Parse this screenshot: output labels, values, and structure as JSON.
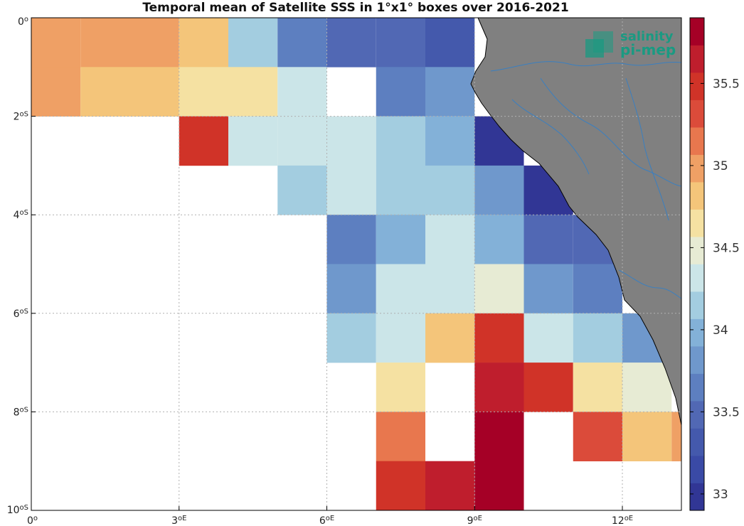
{
  "title": "Temporal mean of Satellite SSS in 1°x1° boxes over 2016-2021",
  "logo": {
    "line1": "salinity",
    "line2": "pi-mep",
    "icon": "pimep-logo-icon"
  },
  "colors": {
    "land": "#808080",
    "rivers": "#3a7fc0",
    "grid": "#b0b0b0",
    "frame": "#000000"
  },
  "map_data": {
    "type": "heatmap",
    "lon_range": [
      0,
      13.2
    ],
    "lat_range": [
      -10,
      0
    ],
    "x_ticks": [
      {
        "value": 0,
        "label": "0",
        "suffix": "o"
      },
      {
        "value": 3,
        "label": "3",
        "suffix": "oE"
      },
      {
        "value": 6,
        "label": "6",
        "suffix": "oE"
      },
      {
        "value": 9,
        "label": "9",
        "suffix": "oE"
      },
      {
        "value": 12,
        "label": "12",
        "suffix": "oE"
      }
    ],
    "y_ticks": [
      {
        "value": 0,
        "label": "0",
        "suffix": "o"
      },
      {
        "value": -2,
        "label": "2",
        "suffix": "oS"
      },
      {
        "value": -4,
        "label": "4",
        "suffix": "oS"
      },
      {
        "value": -6,
        "label": "6",
        "suffix": "oS"
      },
      {
        "value": -8,
        "label": "8",
        "suffix": "oS"
      },
      {
        "value": -10,
        "label": "10",
        "suffix": "oS"
      }
    ],
    "grid": true,
    "colorbar": {
      "range": [
        32.9,
        35.9
      ],
      "ticks": [
        "33",
        "33.5",
        "34",
        "34.5",
        "35",
        "35.5"
      ],
      "colors": [
        "#313695",
        "#3a4aa6",
        "#4459ac",
        "#5168b4",
        "#5d7fc0",
        "#6f98cc",
        "#83b1d8",
        "#a3cde0",
        "#cbe5e8",
        "#e7ebd4",
        "#f5e1a2",
        "#f4c57a",
        "#efa065",
        "#e8774e",
        "#db4b3a",
        "#d03328",
        "#bf1e2d",
        "#a50026"
      ]
    },
    "cells": [
      {
        "lon": 0,
        "lat": 0,
        "sss": 34.95
      },
      {
        "lon": 1,
        "lat": 0,
        "sss": 34.95
      },
      {
        "lon": 2,
        "lat": 0,
        "sss": 34.95
      },
      {
        "lon": 3,
        "lat": 0,
        "sss": 34.75
      },
      {
        "lon": 4,
        "lat": 0,
        "sss": 34.1
      },
      {
        "lon": 5,
        "lat": 0,
        "sss": 33.7
      },
      {
        "lon": 6,
        "lat": 0,
        "sss": 33.55
      },
      {
        "lon": 7,
        "lat": 0,
        "sss": 33.45
      },
      {
        "lon": 8,
        "lat": 0,
        "sss": 33.3
      },
      {
        "lon": 0,
        "lat": -1,
        "sss": 34.95
      },
      {
        "lon": 1,
        "lat": -1,
        "sss": 34.75
      },
      {
        "lon": 2,
        "lat": -1,
        "sss": 34.75
      },
      {
        "lon": 3,
        "lat": -1,
        "sss": 34.6
      },
      {
        "lon": 4,
        "lat": -1,
        "sss": 34.6
      },
      {
        "lon": 5,
        "lat": -1,
        "sss": 34.3
      },
      {
        "lon": 7,
        "lat": -1,
        "sss": 33.6
      },
      {
        "lon": 8,
        "lat": -1,
        "sss": 33.85
      },
      {
        "lon": 3,
        "lat": -2,
        "sss": 35.4
      },
      {
        "lon": 4,
        "lat": -2,
        "sss": 34.3
      },
      {
        "lon": 5,
        "lat": -2,
        "sss": 34.3
      },
      {
        "lon": 6,
        "lat": -2,
        "sss": 34.3
      },
      {
        "lon": 7,
        "lat": -2,
        "sss": 34.1
      },
      {
        "lon": 8,
        "lat": -2,
        "sss": 33.9
      },
      {
        "lon": 9,
        "lat": -2,
        "sss": 33.0
      },
      {
        "lon": 5,
        "lat": -3,
        "sss": 34.1
      },
      {
        "lon": 6,
        "lat": -3,
        "sss": 34.3
      },
      {
        "lon": 7,
        "lat": -3,
        "sss": 34.1
      },
      {
        "lon": 8,
        "lat": -3,
        "sss": 34.1
      },
      {
        "lon": 9,
        "lat": -3,
        "sss": 33.8
      },
      {
        "lon": 10,
        "lat": -3,
        "sss": 33.0
      },
      {
        "lon": 6,
        "lat": -4,
        "sss": 33.6
      },
      {
        "lon": 7,
        "lat": -4,
        "sss": 33.9
      },
      {
        "lon": 8,
        "lat": -4,
        "sss": 34.3
      },
      {
        "lon": 9,
        "lat": -4,
        "sss": 33.9
      },
      {
        "lon": 10,
        "lat": -4,
        "sss": 33.55
      },
      {
        "lon": 11,
        "lat": -4,
        "sss": 33.5
      },
      {
        "lon": 6,
        "lat": -5,
        "sss": 33.8
      },
      {
        "lon": 7,
        "lat": -5,
        "sss": 34.3
      },
      {
        "lon": 8,
        "lat": -5,
        "sss": 34.3
      },
      {
        "lon": 9,
        "lat": -5,
        "sss": 34.45
      },
      {
        "lon": 10,
        "lat": -5,
        "sss": 33.8
      },
      {
        "lon": 11,
        "lat": -5,
        "sss": 33.6
      },
      {
        "lon": 6,
        "lat": -6,
        "sss": 34.1
      },
      {
        "lon": 7,
        "lat": -6,
        "sss": 34.3
      },
      {
        "lon": 8,
        "lat": -6,
        "sss": 34.8
      },
      {
        "lon": 9,
        "lat": -6,
        "sss": 35.4
      },
      {
        "lon": 10,
        "lat": -6,
        "sss": 34.3
      },
      {
        "lon": 11,
        "lat": -6,
        "sss": 34.1
      },
      {
        "lon": 12,
        "lat": -6,
        "sss": 33.85
      },
      {
        "lon": 7,
        "lat": -7,
        "sss": 34.65
      },
      {
        "lon": 9,
        "lat": -7,
        "sss": 35.65
      },
      {
        "lon": 10,
        "lat": -7,
        "sss": 35.4
      },
      {
        "lon": 11,
        "lat": -7,
        "sss": 34.65
      },
      {
        "lon": 12,
        "lat": -7,
        "sss": 34.45
      },
      {
        "lon": 7,
        "lat": -8,
        "sss": 35.1
      },
      {
        "lon": 9,
        "lat": -8,
        "sss": 35.85
      },
      {
        "lon": 11,
        "lat": -8,
        "sss": 35.3
      },
      {
        "lon": 12,
        "lat": -8,
        "sss": 34.8
      },
      {
        "lon": 13,
        "lat": -8,
        "sss": 35.0
      },
      {
        "lon": 7,
        "lat": -9,
        "sss": 35.4
      },
      {
        "lon": 8,
        "lat": -9,
        "sss": 35.7
      },
      {
        "lon": 9,
        "lat": -9,
        "sss": 35.85
      }
    ]
  }
}
